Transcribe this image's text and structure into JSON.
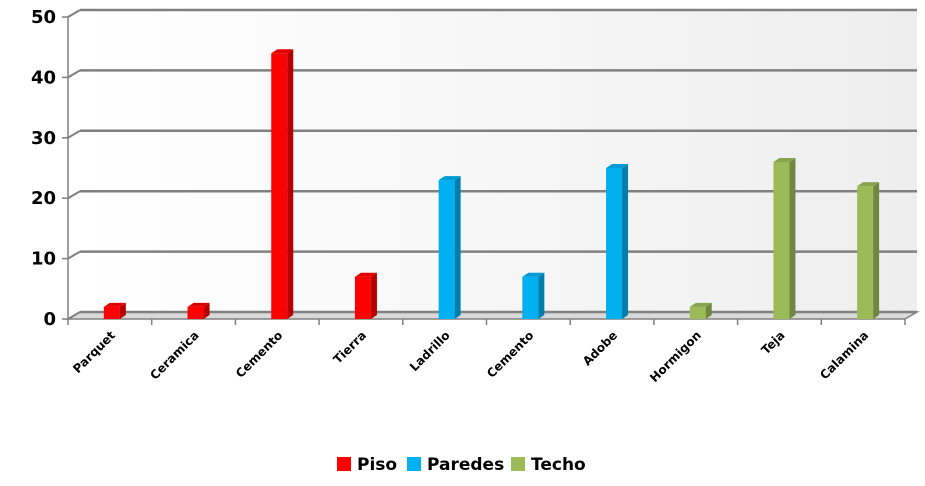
{
  "chart_data": {
    "type": "bar",
    "categories": [
      "Parquet",
      "Ceramica",
      "Cemento",
      "Tierra",
      "Ladrillo",
      "Cemento",
      "Adobe",
      "Hormigon",
      "Teja",
      "Calamina"
    ],
    "series": [
      {
        "name": "Piso",
        "color": "#ff0000",
        "values": [
          2,
          2,
          44,
          7,
          0,
          0,
          0,
          0,
          0,
          0
        ]
      },
      {
        "name": "Paredes",
        "color": "#00b0f0",
        "values": [
          0,
          0,
          0,
          0,
          23,
          7,
          25,
          0,
          0,
          0
        ]
      },
      {
        "name": "Techo",
        "color": "#9bbb59",
        "values": [
          0,
          0,
          0,
          0,
          0,
          0,
          0,
          2,
          26,
          22
        ]
      }
    ],
    "ylim": [
      0,
      50
    ],
    "yticks": [
      0,
      10,
      20,
      30,
      40,
      50
    ],
    "grid": true,
    "legend_position": "bottom",
    "title": "",
    "xlabel": "",
    "ylabel": ""
  }
}
